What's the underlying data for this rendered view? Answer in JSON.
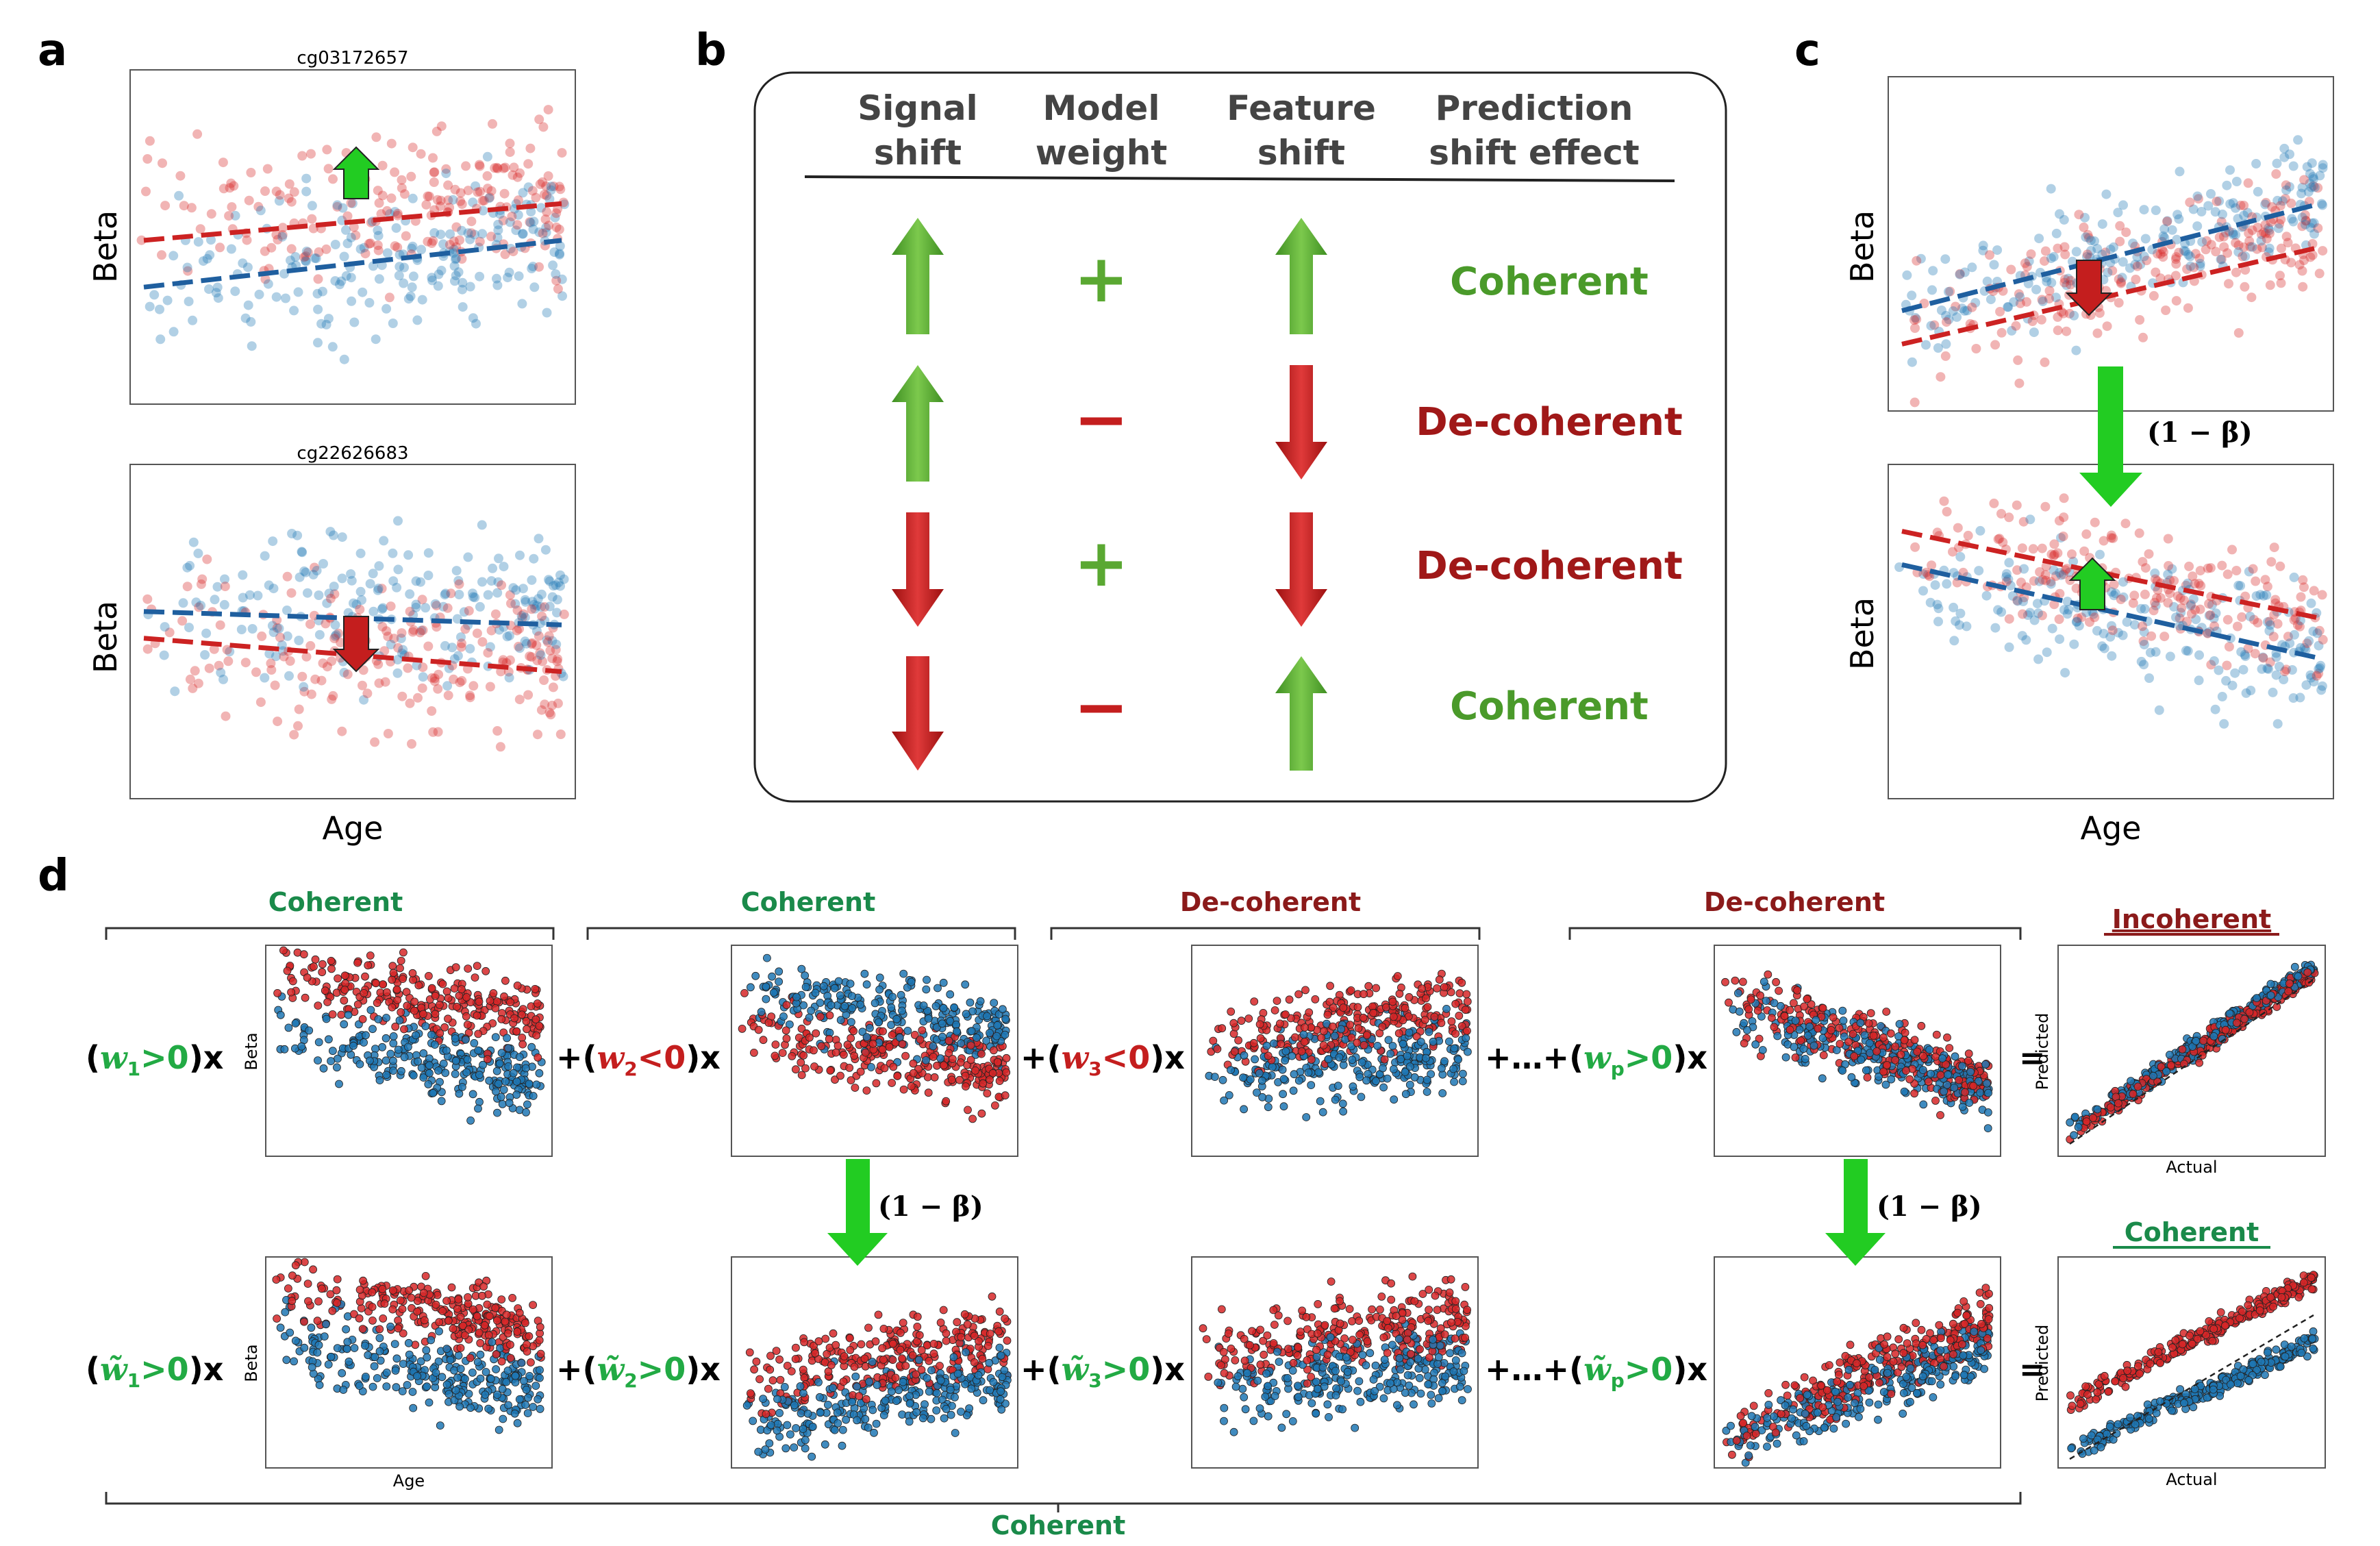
{
  "panels": {
    "a": "a",
    "b": "b",
    "c": "c",
    "d": "d"
  },
  "panel_a": {
    "top_title": "cg03172657",
    "bottom_title": "cg22626683",
    "ylabel": "Beta",
    "xlabel": "Age"
  },
  "panel_b": {
    "headers": [
      {
        "line1": "Signal",
        "line2": "shift"
      },
      {
        "line1": "Model",
        "line2": "weight"
      },
      {
        "line1": "Feature",
        "line2": "shift"
      },
      {
        "line1": "Prediction",
        "line2": "shift effect"
      }
    ],
    "rows": [
      {
        "signal": "up",
        "weight": "+",
        "feature": "up",
        "effect": "Coherent"
      },
      {
        "signal": "up",
        "weight": "−",
        "feature": "down",
        "effect": "De-coherent"
      },
      {
        "signal": "down",
        "weight": "+",
        "feature": "down",
        "effect": "De-coherent"
      },
      {
        "signal": "down",
        "weight": "−",
        "feature": "up",
        "effect": "Coherent"
      }
    ]
  },
  "panel_c": {
    "ylabel": "Beta",
    "xlabel": "Age",
    "transform_label": "(1 − β)"
  },
  "panel_d": {
    "bracket_labels": [
      "Coherent",
      "Coherent",
      "De-coherent",
      "De-coherent"
    ],
    "top_terms": [
      "(w1>0)x",
      "+(w2<0)x",
      "+(w3<0)x",
      "+...+(wp>0)x"
    ],
    "bottom_terms": [
      "(w̃1>0)x",
      "+(w̃2>0)x",
      "+(w̃3>0)x",
      "+...+(w̃p>0)x"
    ],
    "equals": "=",
    "result_top_label": "Incoherent",
    "result_bottom_label": "Coherent",
    "beta_axis": "Beta",
    "age_axis": "Age",
    "predicted_axis": "Predicted",
    "actual_axis": "Actual",
    "transform_label": "(1 − β)",
    "bottom_bracket_label": "Coherent"
  },
  "colors": {
    "red": "#d62728",
    "blue": "#1f77b4",
    "green_arrow": "#5aa832",
    "dark_red": "#a01818",
    "coherent_green": "#4a9a2a",
    "label_green": "#1a8a4a",
    "label_red": "#8b1a1a",
    "bright_green": "#22cc22"
  }
}
